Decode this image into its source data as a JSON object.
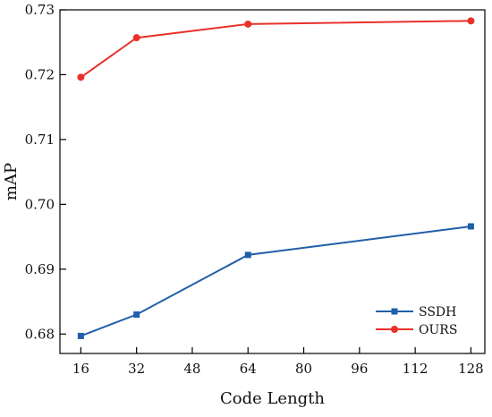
{
  "chart_data": {
    "type": "line",
    "title": "",
    "xlabel": "Code Length",
    "ylabel": "mAP",
    "xlim": [
      10,
      132
    ],
    "ylim": [
      0.677,
      0.73
    ],
    "xticks": [
      16,
      32,
      48,
      64,
      80,
      96,
      112,
      128
    ],
    "yticks": [
      0.68,
      0.69,
      0.7,
      0.71,
      0.72,
      0.73
    ],
    "ytick_labels": [
      "0.68",
      "0.69",
      "0.70",
      "0.71",
      "0.72",
      "0.73"
    ],
    "grid": false,
    "legend_position": "bottom-right",
    "series": [
      {
        "name": "SSDH",
        "color": "#1f5fa8",
        "marker": "square",
        "x": [
          16,
          32,
          64,
          128
        ],
        "values": [
          0.6797,
          0.683,
          0.6922,
          0.6966
        ]
      },
      {
        "name": "OURS",
        "color": "#e8312a",
        "marker": "circle",
        "x": [
          16,
          32,
          64,
          128
        ],
        "values": [
          0.7196,
          0.7257,
          0.7278,
          0.7283
        ]
      }
    ]
  }
}
